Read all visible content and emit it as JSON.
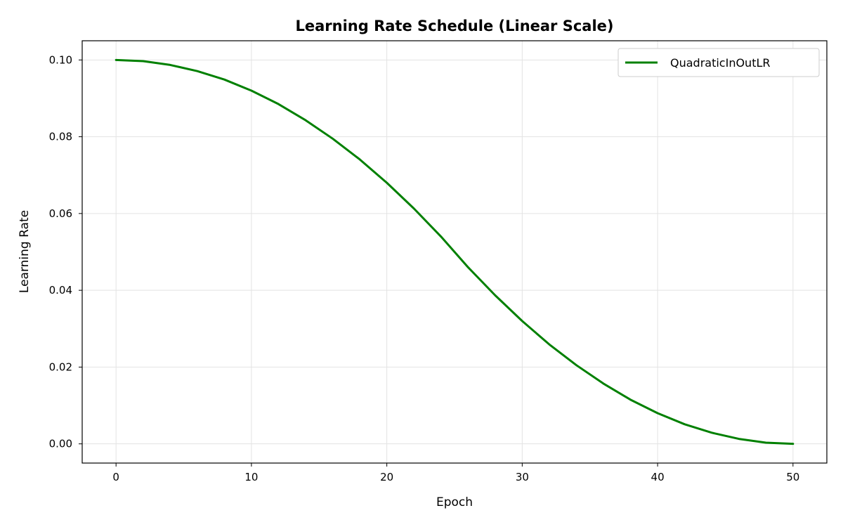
{
  "chart_data": {
    "type": "line",
    "title": "Learning Rate Schedule (Linear Scale)",
    "xlabel": "Epoch",
    "ylabel": "Learning Rate",
    "xlim": [
      -2.5,
      52.5
    ],
    "ylim": [
      -0.005,
      0.105
    ],
    "xticks": [
      0,
      10,
      20,
      30,
      40,
      50
    ],
    "xtick_labels": [
      "0",
      "10",
      "20",
      "30",
      "40",
      "50"
    ],
    "yticks": [
      0.0,
      0.02,
      0.04,
      0.06,
      0.08,
      0.1
    ],
    "ytick_labels": [
      "0.00",
      "0.02",
      "0.04",
      "0.06",
      "0.08",
      "0.10"
    ],
    "grid": true,
    "legend": {
      "position": "upper right"
    },
    "series": [
      {
        "name": "QuadraticInOutLR",
        "color": "#008000",
        "x": [
          0,
          2,
          4,
          6,
          8,
          10,
          12,
          14,
          16,
          18,
          20,
          22,
          24,
          25,
          26,
          28,
          30,
          32,
          34,
          36,
          38,
          40,
          42,
          44,
          46,
          48,
          50
        ],
        "y": [
          0.1,
          0.0997,
          0.0987,
          0.0971,
          0.0949,
          0.092,
          0.0885,
          0.0843,
          0.0795,
          0.0741,
          0.068,
          0.0613,
          0.054,
          0.05,
          0.046,
          0.0387,
          0.032,
          0.0259,
          0.0205,
          0.0157,
          0.0115,
          0.008,
          0.0051,
          0.0029,
          0.0013,
          0.0003,
          0.0
        ]
      }
    ]
  }
}
